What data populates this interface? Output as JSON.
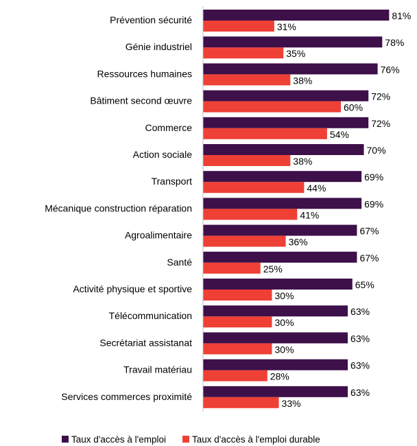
{
  "colors": {
    "employment": "#3d1049",
    "durable": "#ee4035",
    "axis": "#bfbfbf"
  },
  "chart_data": {
    "type": "bar",
    "orientation": "horizontal",
    "title": "",
    "xlabel": "",
    "ylabel": "",
    "xlim": [
      0,
      100
    ],
    "grid": false,
    "legend_position": "bottom",
    "value_suffix": "%",
    "categories": [
      "Prévention sécurité",
      "Génie industriel",
      "Ressources humaines",
      "Bâtiment second œuvre",
      "Commerce",
      "Action sociale",
      "Transport",
      "Mécanique construction réparation",
      "Agroalimentaire",
      "Santé",
      "Activité physique et sportive",
      "Télécommunication",
      "Secrétariat assistanat",
      "Travail matériau",
      "Services commerces proximité"
    ],
    "series": [
      {
        "name": "Taux d'accès à l'emploi",
        "values": [
          81,
          78,
          76,
          72,
          72,
          70,
          69,
          69,
          67,
          67,
          65,
          63,
          63,
          63,
          63
        ]
      },
      {
        "name": "Taux d'accès à l'emploi durable",
        "values": [
          31,
          35,
          38,
          60,
          54,
          38,
          44,
          41,
          36,
          25,
          30,
          30,
          30,
          28,
          33
        ]
      }
    ]
  }
}
